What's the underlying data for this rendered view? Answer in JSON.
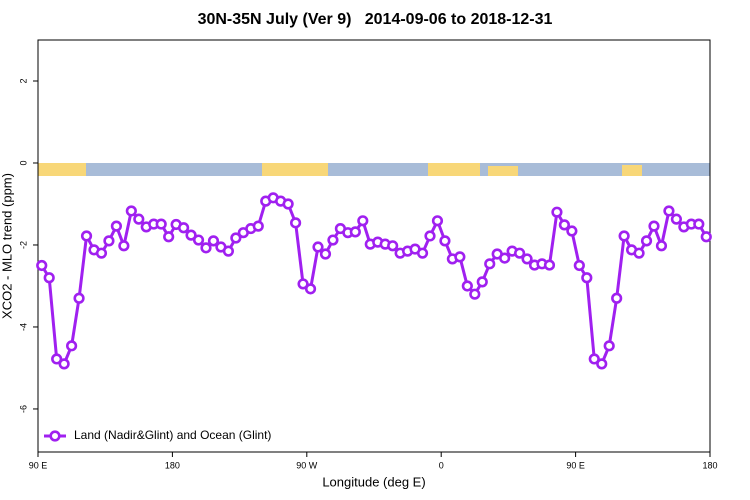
{
  "chart_data": {
    "type": "line",
    "title": "30N-35N July (Ver 9)   2014-09-06 to 2018-12-31",
    "xlabel": "Longitude (deg E)",
    "ylabel": "XCO2 - MLO trend (ppm)",
    "x": [
      92.5,
      97.5,
      102.5,
      107.5,
      112.5,
      117.5,
      122.5,
      127.5,
      132.5,
      137.5,
      142.5,
      147.5,
      152.5,
      157.5,
      162.5,
      167.5,
      172.5,
      177.5,
      182.5,
      187.5,
      192.5,
      197.5,
      202.5,
      207.5,
      212.5,
      217.5,
      222.5,
      227.5,
      232.5,
      237.5,
      242.5,
      247.5,
      252.5,
      257.5,
      262.5,
      267.5,
      272.5,
      277.5,
      282.5,
      287.5,
      292.5,
      297.5,
      302.5,
      307.5,
      312.5,
      317.5,
      322.5,
      327.5,
      332.5,
      337.5,
      342.5,
      347.5,
      352.5,
      357.5,
      362.5,
      367.5,
      372.5,
      377.5,
      382.5,
      387.5,
      392.5,
      397.5,
      402.5,
      407.5,
      412.5,
      417.5,
      422.5,
      427.5,
      432.5,
      437.5,
      442.5,
      447.5,
      452.5,
      457.5,
      462.5,
      467.5,
      472.5,
      477.5,
      482.5,
      487.5,
      492.5,
      497.5,
      502.5,
      507.5,
      512.5,
      517.5,
      522.5,
      527.5,
      532.5,
      537.5
    ],
    "series": [
      {
        "name": "Land (Nadir&Glint) and Ocean (Glint)",
        "color": "#a020f0",
        "values": [
          -2.5,
          -2.8,
          -4.78,
          -4.9,
          -4.46,
          -3.3,
          -1.78,
          -2.12,
          -2.2,
          -1.9,
          -1.54,
          -2.02,
          -1.17,
          -1.37,
          -1.56,
          -1.49,
          -1.49,
          -1.8,
          -1.5,
          -1.58,
          -1.76,
          -1.88,
          -2.07,
          -1.9,
          -2.05,
          -2.15,
          -1.83,
          -1.7,
          -1.6,
          -1.54,
          -0.93,
          -0.85,
          -0.93,
          -1.0,
          -1.46,
          -2.95,
          -3.07,
          -2.05,
          -2.22,
          -1.88,
          -1.6,
          -1.7,
          -1.68,
          -1.41,
          -1.98,
          -1.93,
          -1.98,
          -2.02,
          -2.2,
          -2.15,
          -2.1,
          -2.2,
          -1.78,
          -1.41,
          -1.9,
          -2.34,
          -2.29,
          -3.0,
          -3.2,
          -2.9,
          -2.46,
          -2.22,
          -2.32,
          -2.15,
          -2.2,
          -2.34,
          -2.49,
          -2.46,
          -2.49,
          -1.2,
          -1.51,
          -1.66,
          -2.5,
          -2.8,
          -4.78,
          -4.9,
          -4.46,
          -3.3,
          -1.78,
          -2.12,
          -2.2,
          -1.9,
          -1.54,
          -2.02,
          -1.17,
          -1.37,
          -1.56,
          -1.49,
          -1.49,
          -1.8
        ]
      }
    ],
    "xlim": [
      90,
      540
    ],
    "xticks": [
      {
        "value": 90,
        "label": "90 E"
      },
      {
        "value": 180,
        "label": "180"
      },
      {
        "value": 270,
        "label": "90 W"
      },
      {
        "value": 360,
        "label": "0"
      },
      {
        "value": 450,
        "label": "90 E"
      },
      {
        "value": 540,
        "label": "180"
      }
    ],
    "ylim": [
      -7.05,
      3
    ],
    "yticks": [
      -6,
      -4,
      -2,
      0,
      2
    ],
    "grid": false,
    "legend": "lower left"
  }
}
